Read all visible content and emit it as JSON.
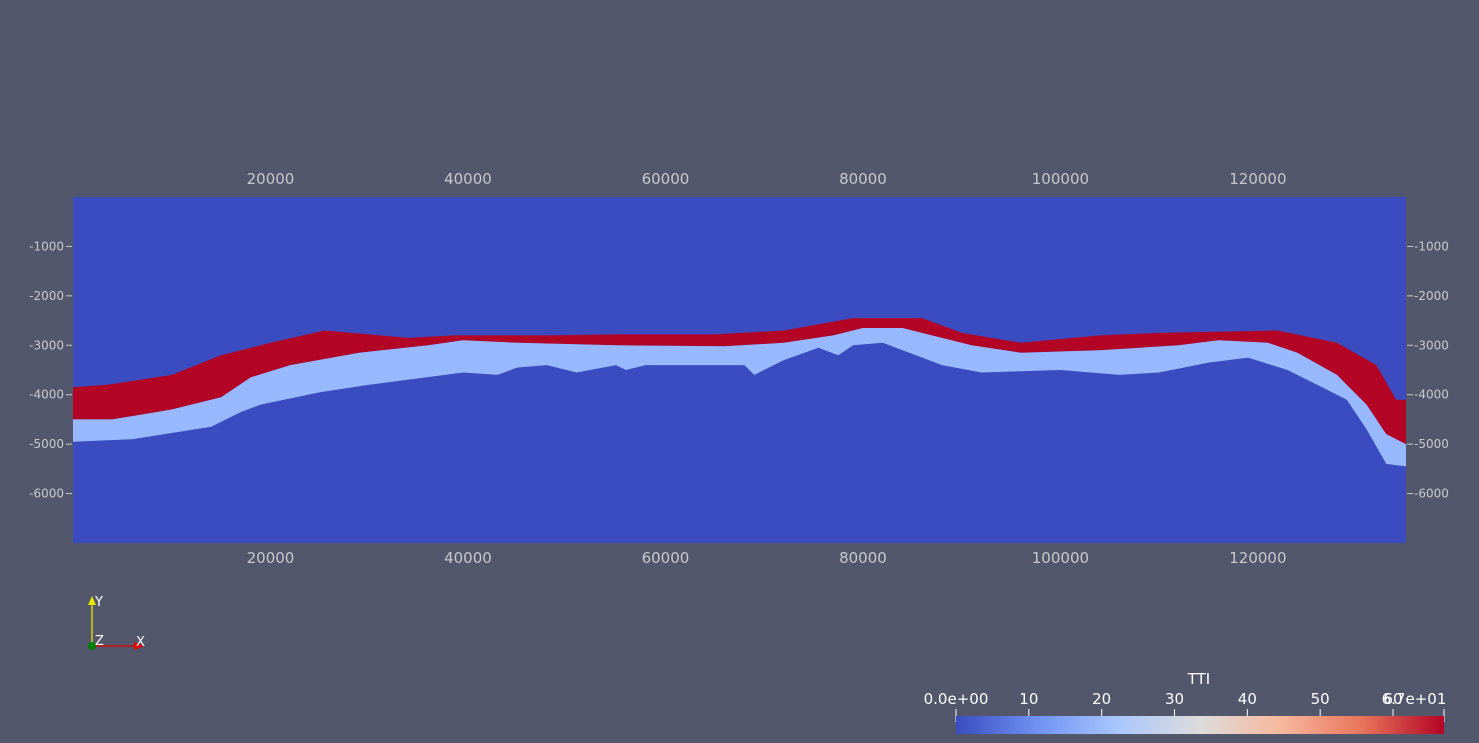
{
  "scene": {
    "background_color": "#52576c",
    "domain_color": "#3a4cc0",
    "axis_label_color": "#c8c8cc"
  },
  "axes": {
    "x_ticks": [
      20000,
      40000,
      60000,
      80000,
      100000,
      120000
    ],
    "x_tick_labels": [
      "20000",
      "40000",
      "60000",
      "80000",
      "100000",
      "120000"
    ],
    "x_range": [
      0,
      135000
    ],
    "y_ticks": [
      -1000,
      -2000,
      -3000,
      -4000,
      -5000,
      -6000
    ],
    "y_tick_labels": [
      "-1000",
      "-2000",
      "-3000",
      "-4000",
      "-5000",
      "-6000"
    ],
    "y_range": [
      -7000,
      0
    ]
  },
  "layers": {
    "red_layer": {
      "color": "#b40426",
      "value": 67,
      "top": [
        [
          0,
          -3850
        ],
        [
          3500,
          -3800
        ],
        [
          10000,
          -3600
        ],
        [
          15000,
          -3200
        ],
        [
          20000,
          -2950
        ],
        [
          25500,
          -2700
        ],
        [
          34000,
          -2850
        ],
        [
          38500,
          -2800
        ],
        [
          42000,
          -2800
        ],
        [
          48000,
          -2800
        ],
        [
          55000,
          -2780
        ],
        [
          65000,
          -2780
        ],
        [
          72000,
          -2700
        ],
        [
          79000,
          -2450
        ],
        [
          86000,
          -2450
        ],
        [
          90000,
          -2750
        ],
        [
          96000,
          -2950
        ],
        [
          104000,
          -2800
        ],
        [
          110000,
          -2750
        ],
        [
          122000,
          -2700
        ],
        [
          128000,
          -2950
        ],
        [
          132000,
          -3400
        ],
        [
          134000,
          -4100
        ],
        [
          135000,
          -4100
        ]
      ],
      "bottom": [
        [
          0,
          -4500
        ],
        [
          4000,
          -4500
        ],
        [
          10000,
          -4300
        ],
        [
          15000,
          -4050
        ],
        [
          18000,
          -3650
        ],
        [
          22000,
          -3400
        ],
        [
          29000,
          -3150
        ],
        [
          36000,
          -3000
        ],
        [
          39500,
          -2900
        ],
        [
          45000,
          -2950
        ],
        [
          55000,
          -3000
        ],
        [
          66000,
          -3020
        ],
        [
          72000,
          -2950
        ],
        [
          77000,
          -2800
        ],
        [
          80000,
          -2650
        ],
        [
          84000,
          -2650
        ],
        [
          88000,
          -2850
        ],
        [
          91000,
          -3000
        ],
        [
          96000,
          -3150
        ],
        [
          104000,
          -3100
        ],
        [
          112000,
          -3000
        ],
        [
          116000,
          -2900
        ],
        [
          121000,
          -2950
        ],
        [
          124000,
          -3150
        ],
        [
          128000,
          -3600
        ],
        [
          131000,
          -4200
        ],
        [
          133000,
          -4800
        ],
        [
          135000,
          -5000
        ]
      ]
    },
    "light_layer": {
      "color": "#98b9ff",
      "value": 27,
      "bottom": [
        [
          0,
          -4950
        ],
        [
          6000,
          -4900
        ],
        [
          14000,
          -4650
        ],
        [
          17000,
          -4350
        ],
        [
          19000,
          -4200
        ],
        [
          25000,
          -3950
        ],
        [
          30000,
          -3800
        ],
        [
          39500,
          -3550
        ],
        [
          43000,
          -3600
        ],
        [
          45000,
          -3450
        ],
        [
          48000,
          -3400
        ],
        [
          51000,
          -3550
        ],
        [
          55000,
          -3400
        ],
        [
          56000,
          -3500
        ],
        [
          58000,
          -3400
        ],
        [
          62000,
          -3400
        ],
        [
          68000,
          -3400
        ],
        [
          69000,
          -3600
        ],
        [
          72000,
          -3300
        ],
        [
          75500,
          -3050
        ],
        [
          77500,
          -3200
        ],
        [
          79000,
          -3000
        ],
        [
          82000,
          -2950
        ],
        [
          86000,
          -3250
        ],
        [
          88000,
          -3400
        ],
        [
          92000,
          -3550
        ],
        [
          100000,
          -3500
        ],
        [
          106000,
          -3600
        ],
        [
          110000,
          -3550
        ],
        [
          115000,
          -3350
        ],
        [
          119000,
          -3250
        ],
        [
          123000,
          -3500
        ],
        [
          126000,
          -3800
        ],
        [
          129000,
          -4100
        ],
        [
          131000,
          -4700
        ],
        [
          133000,
          -5400
        ],
        [
          135000,
          -5450
        ]
      ]
    }
  },
  "orientation_axes": {
    "y_label": "Y",
    "z_label": "Z",
    "x_label": "X",
    "y_color": "#e6e600",
    "x_color": "#e60000",
    "z_color": "#008000"
  },
  "color_legend": {
    "title": "TTI",
    "range": [
      0,
      67
    ],
    "tick_labels": [
      "0.0e+00",
      "10",
      "20",
      "30",
      "40",
      "50",
      "60",
      "6.7e+01"
    ],
    "tick_values": [
      0,
      10,
      20,
      30,
      40,
      50,
      60,
      67
    ],
    "colormap": [
      "#3b4cc0",
      "#6f92f3",
      "#aac7fd",
      "#dddcdc",
      "#f7b89c",
      "#e7745b",
      "#b40426"
    ]
  }
}
